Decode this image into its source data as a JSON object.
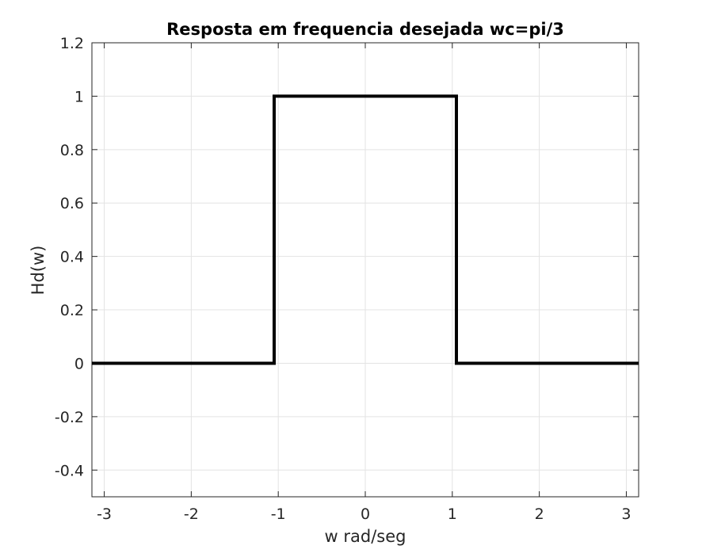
{
  "chart_data": {
    "type": "line",
    "title": "Resposta em frequencia desejada wc=pi/3",
    "xlabel": "w rad/seg",
    "ylabel": "Hd(w)",
    "xlim": [
      -3.14159,
      3.14159
    ],
    "ylim": [
      -0.5,
      1.2
    ],
    "xticks": [
      -3,
      -2,
      -1,
      0,
      1,
      2,
      3
    ],
    "xtick_labels": [
      "-3",
      "-2",
      "-1",
      "0",
      "1",
      "2",
      "3"
    ],
    "yticks": [
      -0.4,
      -0.2,
      0,
      0.2,
      0.4,
      0.6,
      0.8,
      1,
      1.2
    ],
    "ytick_labels": [
      "-0.4",
      "-0.2",
      "0",
      "0.2",
      "0.4",
      "0.6",
      "0.8",
      "1",
      "1.2"
    ],
    "grid": true,
    "series": [
      {
        "color": "#000000",
        "x": [
          -3.14159,
          -1.0472,
          -1.0472,
          1.0472,
          1.0472,
          3.14159
        ],
        "y": [
          0,
          0,
          1,
          1,
          0,
          0
        ]
      }
    ]
  }
}
